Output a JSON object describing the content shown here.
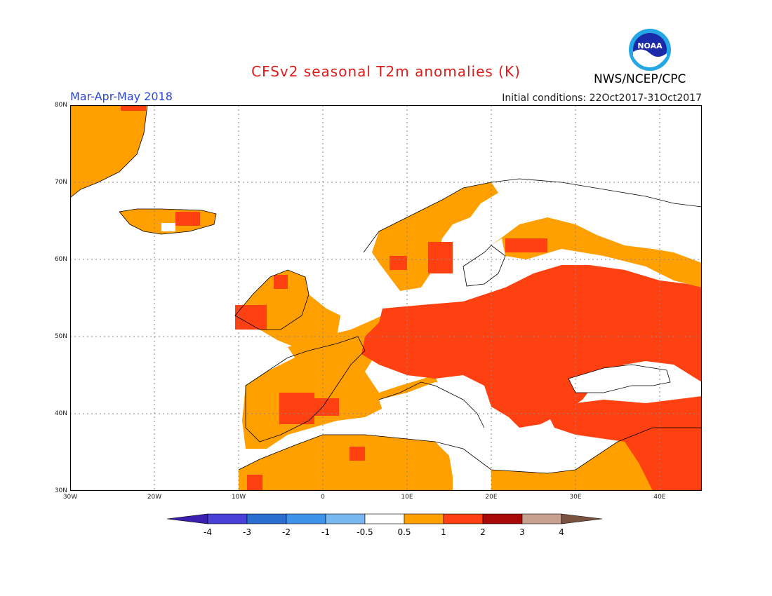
{
  "title": "CFSv2 seasonal T2m anomalies (K)",
  "season": "Mar-Apr-May 2018",
  "initial_conditions": "Initial conditions: 22Oct2017-31Oct2017",
  "agency": "NWS/NCEP/CPC",
  "logo_text": "NOAA",
  "lat_labels": [
    "80N",
    "70N",
    "60N",
    "50N",
    "40N",
    "30N"
  ],
  "lon_labels": [
    "30W",
    "20W",
    "10W",
    "0",
    "10E",
    "20E",
    "30E",
    "40E"
  ],
  "colorbar": {
    "labels": [
      "-4",
      "-3",
      "-2",
      "-1",
      "-0.5",
      "0.5",
      "1",
      "2",
      "3",
      "4"
    ],
    "colors": [
      "#3a1fb0",
      "#4a40d8",
      "#2a6ed0",
      "#3e92e8",
      "#78b8f0",
      "#ffffff",
      "#ffa000",
      "#ff4010",
      "#a80808",
      "#c8a090",
      "#7a5240"
    ]
  }
}
